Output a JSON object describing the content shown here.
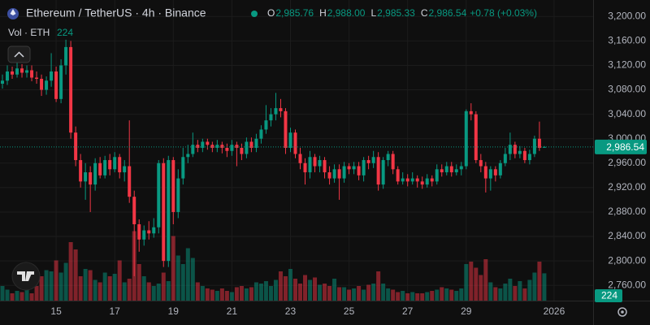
{
  "chart_data": {
    "type": "candlestick",
    "title": "Ethereum / TetherUS · 4h · Binance",
    "legend": [
      {
        "key": "O",
        "value": "2,985.76"
      },
      {
        "key": "H",
        "value": "2,988.00"
      },
      {
        "key": "L",
        "value": "2,985.33"
      },
      {
        "key": "C",
        "value": "2,986.54"
      }
    ],
    "change": "+0.78 (+0.03%)",
    "volume_title": "Vol · ETH",
    "last_price_label": "2,986.54",
    "up_color": "#089981",
    "down_color": "#f23645",
    "open": [
      3090,
      3095,
      3110,
      3105,
      3115,
      3108,
      3112,
      3100,
      3098,
      3080,
      3095,
      3110,
      3065,
      3120,
      3150,
      3010,
      2965,
      2930,
      2945,
      2925,
      2960,
      2940,
      2965,
      2950,
      2970,
      2945,
      2955,
      2905,
      2860,
      2835,
      2850,
      2845,
      2855,
      2960,
      2800,
      2965,
      2880,
      2935,
      2970,
      2975,
      2990,
      2985,
      2995,
      2990,
      2985,
      2990,
      2985,
      2980,
      2990,
      2985,
      2975,
      2995,
      2985,
      3000,
      3015,
      3030,
      3040,
      3050,
      3045,
      2985,
      3010,
      2975,
      2960,
      2945,
      2970,
      2955,
      2965,
      2945,
      2935,
      2950,
      2935,
      2955,
      2950,
      2955,
      2940,
      2965,
      2960,
      2970,
      2925,
      2965,
      2975,
      2950,
      2930,
      2935,
      2930,
      2935,
      2930,
      2925,
      2935,
      2930,
      2950,
      2945,
      2955,
      2945,
      2950,
      2955,
      3045,
      3040,
      2965,
      2955,
      2935,
      2950,
      2940,
      2960,
      2975,
      2990,
      2975,
      2980,
      2965,
      2975,
      3000,
      2985.76
    ],
    "high": [
      3105,
      3120,
      3118,
      3125,
      3122,
      3120,
      3120,
      3110,
      3105,
      3102,
      3140,
      3118,
      3130,
      3162,
      3160,
      3020,
      2975,
      2960,
      2955,
      2968,
      2970,
      2972,
      2975,
      2978,
      2975,
      2965,
      3030,
      2915,
      2868,
      2858,
      2865,
      2870,
      2965,
      2968,
      2972,
      2970,
      2950,
      2985,
      2990,
      3010,
      2998,
      3000,
      3000,
      2995,
      2998,
      2995,
      2992,
      2998,
      2995,
      2992,
      3002,
      3002,
      3008,
      3022,
      3055,
      3050,
      3075,
      3065,
      3050,
      3018,
      3015,
      2985,
      2968,
      2980,
      2975,
      2972,
      2970,
      2955,
      2958,
      2958,
      2962,
      2960,
      2962,
      2962,
      2970,
      2972,
      2980,
      2978,
      2970,
      2980,
      2980,
      2955,
      2945,
      2942,
      2945,
      2940,
      2938,
      2942,
      2940,
      2958,
      2958,
      2962,
      2962,
      2958,
      2962,
      3048,
      3058,
      3045,
      2975,
      2962,
      2955,
      2955,
      2965,
      2985,
      3010,
      2995,
      2988,
      2985,
      2982,
      3005,
      3028,
      2988
    ],
    "low": [
      3082,
      3088,
      3098,
      3100,
      3100,
      3100,
      3094,
      3090,
      3070,
      3072,
      3085,
      3060,
      3058,
      3105,
      3000,
      2955,
      2920,
      2900,
      2880,
      2915,
      2935,
      2935,
      2940,
      2945,
      2935,
      2930,
      2895,
      2775,
      2815,
      2825,
      2835,
      2838,
      2845,
      2790,
      2790,
      2860,
      2870,
      2925,
      2960,
      2970,
      2978,
      2978,
      2982,
      2978,
      2978,
      2976,
      2970,
      2972,
      2955,
      2965,
      2968,
      2978,
      2978,
      2992,
      3008,
      3020,
      3030,
      3035,
      2975,
      2978,
      2968,
      2950,
      2925,
      2935,
      2945,
      2945,
      2935,
      2925,
      2928,
      2900,
      2928,
      2942,
      2942,
      2932,
      2930,
      2950,
      2952,
      2915,
      2918,
      2955,
      2942,
      2925,
      2925,
      2922,
      2925,
      2920,
      2918,
      2920,
      2922,
      2925,
      2938,
      2940,
      2938,
      2940,
      2940,
      2950,
      3030,
      2960,
      2945,
      2912,
      2915,
      2930,
      2935,
      2955,
      2965,
      2968,
      2968,
      2960,
      2958,
      2970,
      2980,
      2985.33
    ],
    "close": [
      3095,
      3110,
      3105,
      3115,
      3108,
      3112,
      3100,
      3098,
      3080,
      3095,
      3110,
      3065,
      3120,
      3150,
      3010,
      2965,
      2930,
      2945,
      2925,
      2960,
      2940,
      2965,
      2950,
      2970,
      2945,
      2955,
      2905,
      2860,
      2835,
      2850,
      2845,
      2855,
      2960,
      2800,
      2965,
      2880,
      2935,
      2970,
      2975,
      2990,
      2985,
      2995,
      2990,
      2985,
      2990,
      2985,
      2980,
      2990,
      2985,
      2975,
      2995,
      2985,
      3000,
      3015,
      3030,
      3040,
      3050,
      3045,
      2985,
      3010,
      2975,
      2960,
      2945,
      2970,
      2955,
      2965,
      2945,
      2935,
      2950,
      2935,
      2955,
      2950,
      2955,
      2940,
      2965,
      2960,
      2970,
      2925,
      2965,
      2975,
      2950,
      2930,
      2935,
      2930,
      2935,
      2930,
      2925,
      2935,
      2930,
      2950,
      2945,
      2955,
      2945,
      2950,
      2955,
      3045,
      3040,
      2965,
      2955,
      2935,
      2950,
      2940,
      2960,
      2975,
      2990,
      2975,
      2980,
      2965,
      2975,
      3000,
      2985,
      2986.54
    ],
    "volume": [
      120,
      90,
      60,
      80,
      70,
      100,
      60,
      120,
      200,
      250,
      240,
      330,
      230,
      310,
      480,
      420,
      200,
      260,
      250,
      170,
      150,
      230,
      200,
      220,
      330,
      150,
      180,
      570,
      300,
      200,
      150,
      120,
      140,
      230,
      160,
      530,
      370,
      300,
      430,
      350,
      150,
      120,
      100,
      90,
      80,
      100,
      80,
      70,
      110,
      120,
      100,
      110,
      150,
      140,
      160,
      120,
      170,
      240,
      200,
      260,
      180,
      140,
      210,
      170,
      190,
      130,
      140,
      120,
      180,
      110,
      110,
      90,
      100,
      120,
      90,
      130,
      140,
      240,
      140,
      100,
      90,
      70,
      80,
      60,
      70,
      60,
      60,
      70,
      80,
      90,
      110,
      100,
      90,
      80,
      100,
      300,
      320,
      270,
      210,
      340,
      150,
      110,
      100,
      140,
      180,
      120,
      160,
      100,
      170,
      230,
      320,
      224
    ],
    "xlim": [
      -0.5,
      121
    ],
    "ylim": [
      2735,
      3227
    ],
    "vlim": [
      0,
      1000
    ],
    "xticks": [
      {
        "value": 11,
        "label": "15"
      },
      {
        "value": 23,
        "label": "17"
      },
      {
        "value": 35,
        "label": "19"
      },
      {
        "value": 47,
        "label": "21"
      },
      {
        "value": 59,
        "label": "23"
      },
      {
        "value": 71,
        "label": "25"
      },
      {
        "value": 83,
        "label": "27"
      },
      {
        "value": 95,
        "label": "29"
      },
      {
        "value": 113,
        "label": "2026"
      }
    ],
    "yticks": [
      {
        "value": 3200,
        "label": "3,200.00"
      },
      {
        "value": 3160,
        "label": "3,160.00"
      },
      {
        "value": 3120,
        "label": "3,120.00"
      },
      {
        "value": 3080,
        "label": "3,080.00"
      },
      {
        "value": 3040,
        "label": "3,040.00"
      },
      {
        "value": 3000,
        "label": "3,000.00"
      },
      {
        "value": 2960,
        "label": "2,960.00"
      },
      {
        "value": 2920,
        "label": "2,920.00"
      },
      {
        "value": 2880,
        "label": "2,880.00"
      },
      {
        "value": 2840,
        "label": "2,840.00"
      },
      {
        "value": 2800,
        "label": "2,800.00"
      },
      {
        "value": 2760,
        "label": "2,760.00"
      }
    ],
    "grid": true
  }
}
